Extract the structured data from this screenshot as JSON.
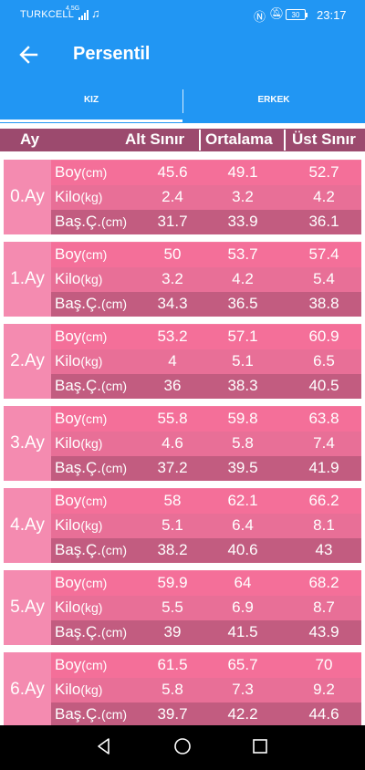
{
  "status": {
    "carrier": "TURKCELL",
    "network": "4.5G",
    "battery": "30",
    "time": "23:17"
  },
  "appbar": {
    "title": "Persentil"
  },
  "tabs": [
    {
      "label": "KIZ"
    },
    {
      "label": "ERKEK"
    }
  ],
  "header": {
    "ay": "Ay",
    "alt": "Alt Sınır",
    "ort": "Ortalama",
    "ust": "Üst Sınır"
  },
  "rows_labels": [
    {
      "name": "Boy",
      "unit": "(cm)"
    },
    {
      "name": "Kilo",
      "unit": "(kg)"
    },
    {
      "name": "Baş.Ç.",
      "unit": "(cm)"
    }
  ],
  "groups": [
    {
      "ay": "0.Ay",
      "rows": [
        [
          "45.6",
          "49.1",
          "52.7"
        ],
        [
          "2.4",
          "3.2",
          "4.2"
        ],
        [
          "31.7",
          "33.9",
          "36.1"
        ]
      ]
    },
    {
      "ay": "1.Ay",
      "rows": [
        [
          "50",
          "53.7",
          "57.4"
        ],
        [
          "3.2",
          "4.2",
          "5.4"
        ],
        [
          "34.3",
          "36.5",
          "38.8"
        ]
      ]
    },
    {
      "ay": "2.Ay",
      "rows": [
        [
          "53.2",
          "57.1",
          "60.9"
        ],
        [
          "4",
          "5.1",
          "6.5"
        ],
        [
          "36",
          "38.3",
          "40.5"
        ]
      ]
    },
    {
      "ay": "3.Ay",
      "rows": [
        [
          "55.8",
          "59.8",
          "63.8"
        ],
        [
          "4.6",
          "5.8",
          "7.4"
        ],
        [
          "37.2",
          "39.5",
          "41.9"
        ]
      ]
    },
    {
      "ay": "4.Ay",
      "rows": [
        [
          "58",
          "62.1",
          "66.2"
        ],
        [
          "5.1",
          "6.4",
          "8.1"
        ],
        [
          "38.2",
          "40.6",
          "43"
        ]
      ]
    },
    {
      "ay": "5.Ay",
      "rows": [
        [
          "59.9",
          "64",
          "68.2"
        ],
        [
          "5.5",
          "6.9",
          "8.7"
        ],
        [
          "39",
          "41.5",
          "43.9"
        ]
      ]
    },
    {
      "ay": "6.Ay",
      "rows": [
        [
          "61.5",
          "65.7",
          "70"
        ],
        [
          "5.8",
          "7.3",
          "9.2"
        ],
        [
          "39.7",
          "42.2",
          "44.6"
        ]
      ]
    }
  ],
  "colors": {
    "primary": "#2196f3",
    "header": "#9c4a6e",
    "row_pink": "#f47ba0"
  }
}
